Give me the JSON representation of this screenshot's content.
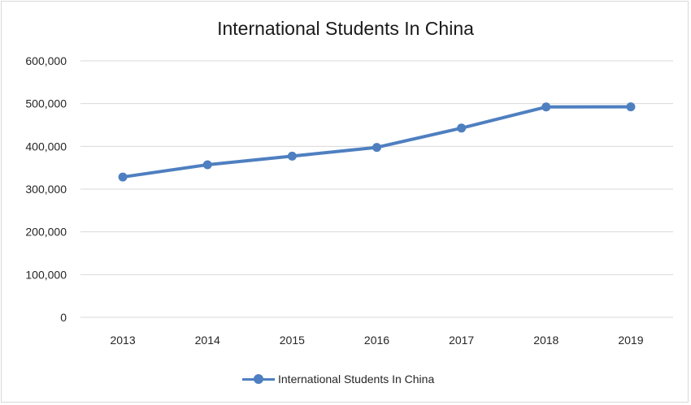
{
  "chart_data": {
    "type": "line",
    "title": "International Students In China",
    "categories": [
      "2013",
      "2014",
      "2015",
      "2016",
      "2017",
      "2018",
      "2019"
    ],
    "series": [
      {
        "name": "International Students In China",
        "values": [
          328330,
          357000,
          377054,
          397635,
          442773,
          492185,
          492500
        ],
        "color": "#4e7fc0"
      }
    ],
    "y_ticks": [
      "0",
      "100,000",
      "200,000",
      "300,000",
      "400,000",
      "500,000",
      "600,000"
    ],
    "ylim": [
      0,
      600000
    ],
    "grid": "horizontal",
    "legend_position": "bottom"
  }
}
